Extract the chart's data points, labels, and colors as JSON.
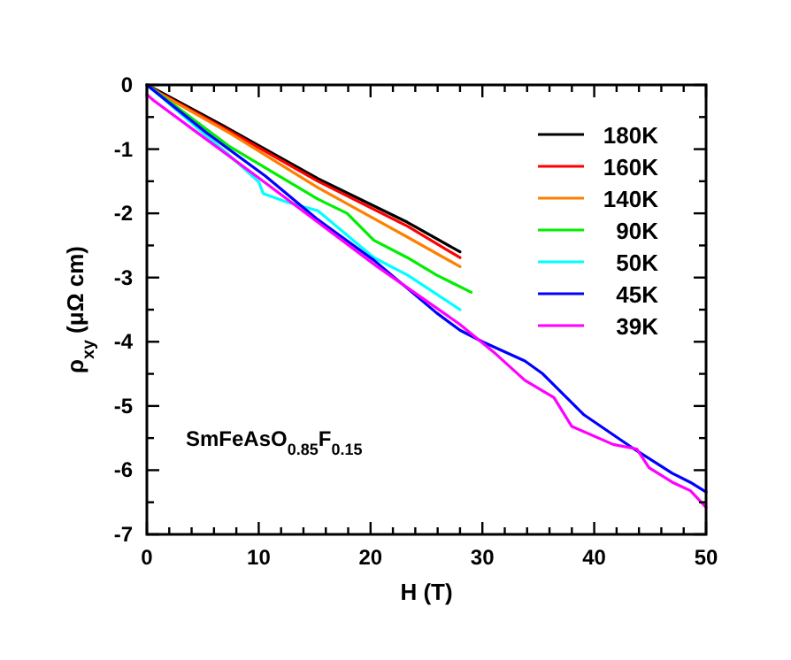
{
  "chart_data": {
    "type": "line",
    "xlabel": "H (T)",
    "ylabel": "ρ$_{xy}$ (μΩ cm)",
    "xlim": [
      0,
      50
    ],
    "ylim": [
      -7,
      0
    ],
    "xticks": [
      0,
      {
        "value": 2,
        "label": null
      },
      {
        "value": 4,
        "label": null
      },
      {
        "value": 6,
        "label": null
      },
      {
        "value": 8,
        "label": null
      },
      10,
      {
        "value": 12,
        "label": null
      },
      {
        "value": 14,
        "label": null
      },
      {
        "value": 16,
        "label": null
      },
      {
        "value": 18,
        "label": null
      },
      20,
      {
        "value": 22,
        "label": null
      },
      {
        "value": 24,
        "label": null
      },
      {
        "value": 26,
        "label": null
      },
      {
        "value": 28,
        "label": null
      },
      30,
      {
        "value": 32,
        "label": null
      },
      {
        "value": 34,
        "label": null
      },
      {
        "value": 36,
        "label": null
      },
      {
        "value": 38,
        "label": null
      },
      40,
      {
        "value": 42,
        "label": null
      },
      {
        "value": 44,
        "label": null
      },
      {
        "value": 46,
        "label": null
      },
      {
        "value": 48,
        "label": null
      },
      50
    ],
    "yticks": [
      -7,
      {
        "value": -6.5,
        "label": null
      },
      -6,
      {
        "value": -5.5,
        "label": null
      },
      -5,
      {
        "value": -4.5,
        "label": null
      },
      -4,
      {
        "value": -3.5,
        "label": null
      },
      -3,
      {
        "value": -2.5,
        "label": null
      },
      -2,
      {
        "value": -1.5,
        "label": null
      },
      -1,
      {
        "value": -0.5,
        "label": null
      },
      0
    ],
    "grid": false,
    "legend": "top right",
    "marker": "none",
    "line_style": "solid",
    "annotations": [
      "SmFeAsO$_{0.85}$F$_{0.15}$"
    ],
    "series": [
      {
        "name": "180K",
        "color": "#000000",
        "x": [
          0,
          1.1,
          7.4,
          15.3,
          23.3,
          28
        ],
        "values": [
          0,
          -0.1,
          -0.69,
          -1.46,
          -2.14,
          -2.6
        ]
      },
      {
        "name": "160K",
        "color": "#ff0000",
        "x": [
          0,
          1.1,
          7.4,
          15.3,
          23.3,
          28
        ],
        "values": [
          0,
          -0.12,
          -0.72,
          -1.5,
          -2.2,
          -2.69
        ]
      },
      {
        "name": "140K",
        "color": "#ff8000",
        "x": [
          0,
          1.1,
          7.4,
          15.3,
          23.3,
          28
        ],
        "values": [
          0,
          -0.13,
          -0.75,
          -1.6,
          -2.37,
          -2.83
        ]
      },
      {
        "name": "90K",
        "color": "#00ee00",
        "x": [
          0,
          1.1,
          7.4,
          15.3,
          17.9,
          20.3,
          23.3,
          25.9,
          29
        ],
        "values": [
          0,
          -0.14,
          -0.96,
          -1.78,
          -2.0,
          -2.42,
          -2.69,
          -2.96,
          -3.23
        ]
      },
      {
        "name": "50K",
        "color": "#00ffff",
        "x": [
          0,
          1.1,
          7.4,
          10,
          10.4,
          12.6,
          15.3,
          20.3,
          23.3,
          28
        ],
        "values": [
          0,
          -0.16,
          -1.1,
          -1.51,
          -1.69,
          -1.83,
          -1.96,
          -2.69,
          -2.96,
          -3.5
        ]
      },
      {
        "name": "45K",
        "color": "#0000ff",
        "x": [
          0,
          5.3,
          10.6,
          15.3,
          20.3,
          25.9,
          28,
          30,
          33.8,
          35.4,
          39.1,
          43.3,
          47,
          48.6,
          50
        ],
        "values": [
          0,
          -0.74,
          -1.42,
          -2.1,
          -2.73,
          -3.55,
          -3.82,
          -4.0,
          -4.3,
          -4.5,
          -5.14,
          -5.64,
          -6.05,
          -6.19,
          -6.34
        ]
      },
      {
        "name": "39K",
        "color": "#ff00ff",
        "x": [
          0,
          0.6,
          4.8,
          10.1,
          15.3,
          20.6,
          28,
          31.2,
          33.8,
          36.4,
          38,
          41.7,
          43.8,
          44.9,
          47,
          48.6,
          50
        ],
        "values": [
          -0.15,
          -0.24,
          -0.78,
          -1.46,
          -2.14,
          -2.83,
          -3.73,
          -4.19,
          -4.6,
          -4.87,
          -5.32,
          -5.6,
          -5.67,
          -5.96,
          -6.19,
          -6.32,
          -6.58
        ]
      }
    ]
  }
}
